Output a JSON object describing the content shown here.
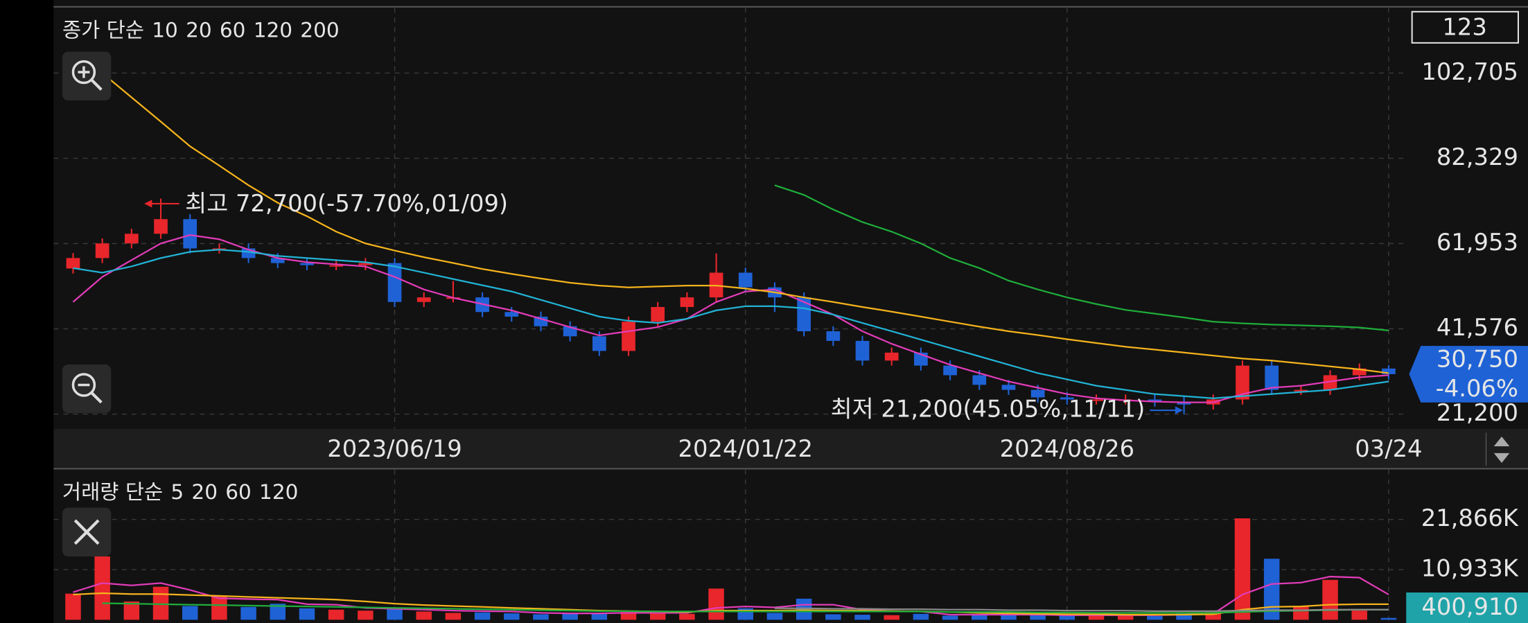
{
  "chart_data": [
    {
      "type": "candlestick",
      "title": "종가 단순",
      "categories": [
        null,
        null,
        null,
        null,
        null,
        null,
        null,
        null,
        null,
        null,
        null,
        "2023/06/19",
        null,
        null,
        null,
        null,
        null,
        null,
        null,
        null,
        null,
        null,
        null,
        "2024/01/22",
        null,
        null,
        null,
        null,
        null,
        null,
        null,
        null,
        null,
        null,
        "2024/08/26",
        null,
        null,
        null,
        null,
        null,
        null,
        null,
        null,
        null,
        null,
        "03/24"
      ],
      "open": [
        56000,
        58500,
        62000,
        64300,
        67800,
        60800,
        60800,
        58500,
        57300,
        56800,
        56800,
        57300,
        48000,
        49100,
        49100,
        45600,
        44500,
        42200,
        39800,
        36300,
        43300,
        46800,
        49100,
        55000,
        51500,
        49100,
        41000,
        38700,
        34000,
        35900,
        32800,
        30500,
        28200,
        27000,
        25200,
        24700,
        24700,
        24700,
        24200,
        23500,
        24700,
        32800,
        27000,
        27000,
        30500,
        32100
      ],
      "high": [
        59700,
        63200,
        65500,
        72700,
        69000,
        62000,
        62000,
        59700,
        58500,
        58000,
        58500,
        58500,
        50300,
        53000,
        50300,
        46800,
        45700,
        43400,
        41000,
        44500,
        48000,
        50300,
        59600,
        56200,
        52700,
        50300,
        42200,
        39900,
        37100,
        37100,
        34000,
        31700,
        29400,
        28200,
        26400,
        25900,
        25900,
        25900,
        25400,
        25900,
        34000,
        34000,
        28200,
        31700,
        33300,
        32900
      ],
      "low": [
        54800,
        57300,
        60800,
        63100,
        59600,
        59600,
        57300,
        56100,
        55600,
        55600,
        55600,
        46800,
        46800,
        47900,
        44400,
        43300,
        41000,
        38600,
        35100,
        35100,
        42100,
        45600,
        47900,
        50300,
        45600,
        39800,
        37500,
        32800,
        32800,
        31600,
        29300,
        27000,
        25800,
        24000,
        23500,
        23500,
        23500,
        23000,
        21200,
        22300,
        23500,
        25800,
        25800,
        25800,
        29300,
        29500
      ],
      "close": [
        58500,
        62000,
        64300,
        67800,
        60800,
        60800,
        58500,
        57300,
        56800,
        56800,
        57300,
        48000,
        49100,
        49100,
        45600,
        44500,
        42200,
        39800,
        36300,
        43300,
        46800,
        49100,
        55000,
        51500,
        49100,
        41000,
        38700,
        34000,
        35900,
        32800,
        30500,
        28200,
        27000,
        25200,
        24700,
        24700,
        24700,
        24200,
        23500,
        24700,
        32800,
        27000,
        27000,
        30500,
        32100,
        30750
      ],
      "up_color": "#e8262b",
      "down_color": "#1f62d6",
      "series": [
        {
          "name": "10",
          "color": "#e23cb8",
          "values": [
            48000,
            54000,
            58000,
            62000,
            64000,
            63000,
            60500,
            58500,
            57500,
            57000,
            56500,
            54000,
            51000,
            49000,
            47500,
            46000,
            44000,
            42000,
            40000,
            41000,
            42000,
            44000,
            48000,
            50500,
            51000,
            48000,
            45000,
            41000,
            38000,
            35500,
            33000,
            31000,
            29000,
            27500,
            26000,
            25000,
            24500,
            24200,
            24000,
            24000,
            26000,
            27500,
            28000,
            29000,
            30000,
            30500
          ]
        },
        {
          "name": "20",
          "color": "#22b3d6",
          "values": [
            56100,
            55000,
            56500,
            58500,
            60000,
            60500,
            60000,
            59000,
            58500,
            58000,
            57500,
            56500,
            55000,
            53500,
            52000,
            50500,
            48500,
            46500,
            44500,
            43500,
            43000,
            44000,
            46000,
            47000,
            47000,
            46500,
            45000,
            43000,
            41000,
            39000,
            37000,
            35000,
            33000,
            31000,
            29500,
            28000,
            27000,
            26000,
            25500,
            25000,
            25500,
            26000,
            26500,
            27000,
            28000,
            29000
          ]
        },
        {
          "name": "60",
          "color": "#f5b31c",
          "values": [
            null,
            102700,
            96900,
            91100,
            85200,
            80600,
            75900,
            71700,
            68500,
            64800,
            62000,
            60300,
            58700,
            57300,
            55900,
            54700,
            53600,
            52600,
            51900,
            51500,
            51700,
            51900,
            51900,
            51200,
            50300,
            49100,
            48000,
            46800,
            45700,
            44500,
            43300,
            42100,
            41000,
            40100,
            39100,
            38200,
            37300,
            36600,
            35900,
            35200,
            34500,
            34000,
            33300,
            32600,
            31900,
            31000
          ]
        },
        {
          "name": "120",
          "color": "#1fae3b",
          "values": [
            null,
            null,
            null,
            null,
            null,
            null,
            null,
            null,
            null,
            null,
            null,
            null,
            null,
            null,
            null,
            null,
            null,
            null,
            null,
            null,
            null,
            null,
            null,
            null,
            75900,
            73600,
            70100,
            67100,
            64800,
            62000,
            58500,
            56100,
            53100,
            51000,
            49100,
            47500,
            46100,
            45200,
            44300,
            43300,
            42900,
            42600,
            42400,
            42200,
            41900,
            41200
          ]
        },
        {
          "name": "200",
          "color": "#8a8a8a",
          "values": [
            null,
            null,
            null,
            null,
            null,
            null,
            null,
            null,
            null,
            null,
            null,
            null,
            null,
            null,
            null,
            null,
            null,
            null,
            null,
            null,
            null,
            null,
            null,
            null,
            null,
            null,
            null,
            null,
            null,
            null,
            null,
            null,
            null,
            null,
            null,
            null,
            null,
            null,
            null,
            null,
            null,
            null,
            null,
            null,
            null,
            null
          ]
        }
      ],
      "ylim": [
        17700,
        118300
      ],
      "yticks": [
        {
          "value": 21200,
          "label": "21,200"
        },
        {
          "value": 41576,
          "label": "41,576"
        },
        {
          "value": 61953,
          "label": "61,953"
        },
        {
          "value": 82329,
          "label": "82,329"
        },
        {
          "value": 102705,
          "label": "102,705"
        }
      ],
      "grid": true,
      "annotations": [
        "최고 72,700(-57.70%,01/09)",
        "최저 21,200(45.05%,11/11)"
      ],
      "last_price": {
        "value": 30750,
        "label": "30,750"
      },
      "change": {
        "value": -4.06,
        "label": "-4.06%"
      }
    },
    {
      "type": "bar",
      "title": "거래량 단순",
      "values": [
        5700000,
        13800000,
        4000000,
        7200000,
        3000000,
        5300000,
        2800000,
        3500000,
        2500000,
        2200000,
        2000000,
        2600000,
        1800000,
        1500000,
        1600000,
        1400000,
        1200000,
        1300000,
        1500000,
        2000000,
        1400000,
        1300000,
        6800000,
        2500000,
        1500000,
        4600000,
        1200000,
        1100000,
        1000000,
        1300000,
        900000,
        1200000,
        1000000,
        1100000,
        900000,
        1000000,
        1100000,
        800000,
        1500000,
        2000000,
        22100000,
        13300000,
        3000000,
        8700000,
        2000000,
        400910
      ],
      "value_labels": [
        null,
        null,
        null,
        null,
        null,
        null,
        null,
        null,
        null,
        null,
        null,
        null,
        null,
        null,
        null,
        null,
        null,
        null,
        null,
        null,
        null,
        null,
        null,
        null,
        null,
        null,
        null,
        null,
        null,
        null,
        null,
        null,
        null,
        null,
        null,
        null,
        null,
        null,
        null,
        null,
        null,
        null,
        null,
        null,
        null,
        "400,910"
      ],
      "series": [
        {
          "name": "5",
          "color": "#e23cb8",
          "values": [
            6000000,
            8000000,
            7500000,
            8000000,
            6500000,
            4700000,
            4500000,
            4400000,
            3400000,
            3300000,
            2600000,
            2400000,
            2200000,
            2000000,
            1900000,
            1800000,
            1500000,
            1400000,
            1400000,
            1500000,
            1500000,
            1500000,
            2600000,
            2900000,
            2700000,
            3300000,
            3300000,
            2200000,
            1900000,
            1800000,
            1100000,
            1100000,
            1100000,
            1100000,
            1000000,
            1000000,
            1000000,
            1000000,
            1100000,
            1300000,
            5500000,
            7800000,
            8100000,
            9400000,
            9200000,
            5500000
          ]
        },
        {
          "name": "20",
          "color": "#f5b31c",
          "values": [
            5500000,
            5800000,
            5600000,
            5600000,
            5400000,
            5200000,
            5000000,
            4800000,
            4600000,
            4400000,
            4000000,
            3500000,
            3200000,
            3000000,
            2800000,
            2600000,
            2400000,
            2200000,
            2000000,
            1900000,
            1800000,
            1700000,
            2000000,
            2000000,
            2000000,
            2100000,
            2000000,
            2000000,
            1900000,
            1800000,
            1700000,
            1500000,
            1400000,
            1300000,
            1200000,
            1200000,
            1100000,
            1100000,
            1100000,
            1200000,
            2200000,
            2800000,
            2900000,
            3300000,
            3400000,
            3400000
          ]
        },
        {
          "name": "60",
          "color": "#1fae3b",
          "values": [
            null,
            3600000,
            3500000,
            3400000,
            3300000,
            3200000,
            3100000,
            3000000,
            2900000,
            2800000,
            2700000,
            2600000,
            2500000,
            2400000,
            2300000,
            2200000,
            2100000,
            2000000,
            1900000,
            1900000,
            1800000,
            1800000,
            1800000,
            1800000,
            1800000,
            1800000,
            1800000,
            1800000,
            1800000,
            1800000,
            1700000,
            1700000,
            1700000,
            1600000,
            1600000,
            1500000,
            1500000,
            1500000,
            1500000,
            1500000,
            1700000,
            1900000,
            2000000,
            2100000,
            2200000,
            2200000
          ]
        },
        {
          "name": "120",
          "color": "#8a8a8a",
          "values": [
            null,
            null,
            null,
            null,
            null,
            null,
            null,
            null,
            null,
            null,
            null,
            null,
            null,
            null,
            null,
            null,
            null,
            null,
            null,
            null,
            null,
            null,
            null,
            null,
            2500000,
            2500000,
            2400000,
            2400000,
            2300000,
            2300000,
            2200000,
            2200000,
            2100000,
            2100000,
            2000000,
            2000000,
            2000000,
            1900000,
            1900000,
            1900000,
            2000000,
            2100000,
            2100000,
            2200000,
            2200000,
            2200000
          ]
        }
      ],
      "ylim": [
        0,
        31000000
      ],
      "yticks": [
        {
          "value": 10933000,
          "label": "10,933K"
        },
        {
          "value": 21866000,
          "label": "21,866K"
        }
      ],
      "grid": true
    }
  ],
  "ui": {
    "box_label": "123"
  }
}
